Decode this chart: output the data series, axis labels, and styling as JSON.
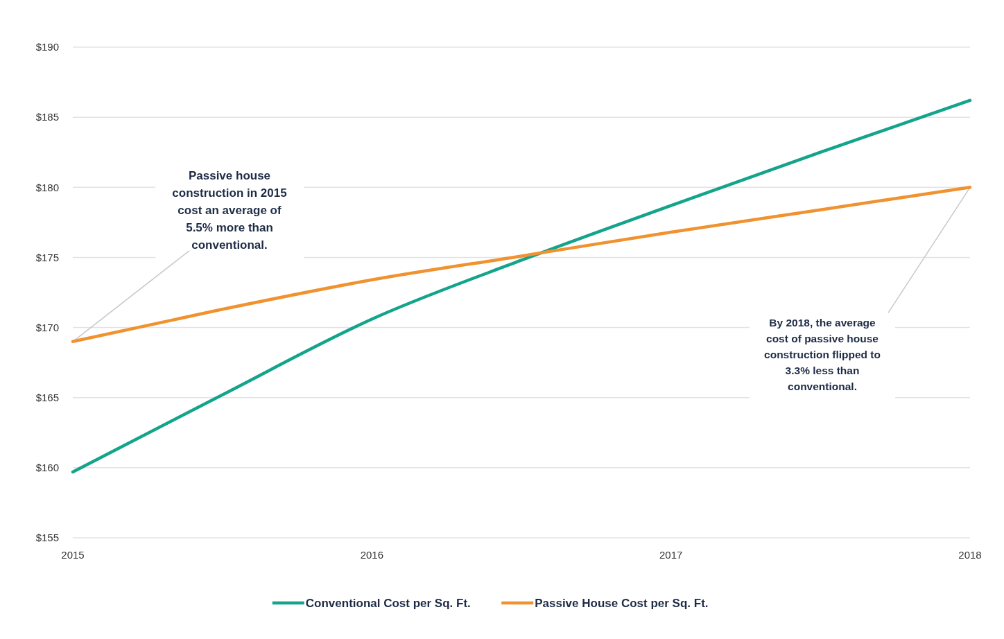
{
  "chart_data": {
    "type": "line",
    "x": [
      2015,
      2015.5,
      2016,
      2016.5,
      2017,
      2017.5,
      2018
    ],
    "xlim": [
      2015,
      2018
    ],
    "xticks": [
      2015,
      2016,
      2017,
      2018
    ],
    "ylim": [
      155,
      190
    ],
    "yticks": [
      {
        "value": 155,
        "label": "$155"
      },
      {
        "value": 160,
        "label": "$160"
      },
      {
        "value": 165,
        "label": "$165"
      },
      {
        "value": 170,
        "label": "$170"
      },
      {
        "value": 175,
        "label": "$175"
      },
      {
        "value": 180,
        "label": "$180"
      },
      {
        "value": 185,
        "label": "$185"
      },
      {
        "value": 190,
        "label": "$190"
      }
    ],
    "series": [
      {
        "name": "Conventional Cost per Sq. Ft.",
        "color": "#14a38b",
        "values": [
          159.7,
          165.2,
          170.6,
          174.8,
          178.7,
          182.5,
          186.2
        ]
      },
      {
        "name": "Passive House Cost per Sq. Ft.",
        "color": "#f0922f",
        "values": [
          169.0,
          171.3,
          173.4,
          175.1,
          176.8,
          178.4,
          180.0
        ]
      }
    ],
    "annotations": [
      {
        "text": "Passive house construction in 2015 cost an average of 5.5% more than conventional.",
        "x": 2015,
        "y": 169.0
      },
      {
        "text": "By 2018, the average cost of passive house construction flipped to 3.3% less than conventional.",
        "x": 2018,
        "y": 180.0
      }
    ],
    "grid": "y",
    "legend": "bottom",
    "marker": "none",
    "line_style": "solid"
  }
}
